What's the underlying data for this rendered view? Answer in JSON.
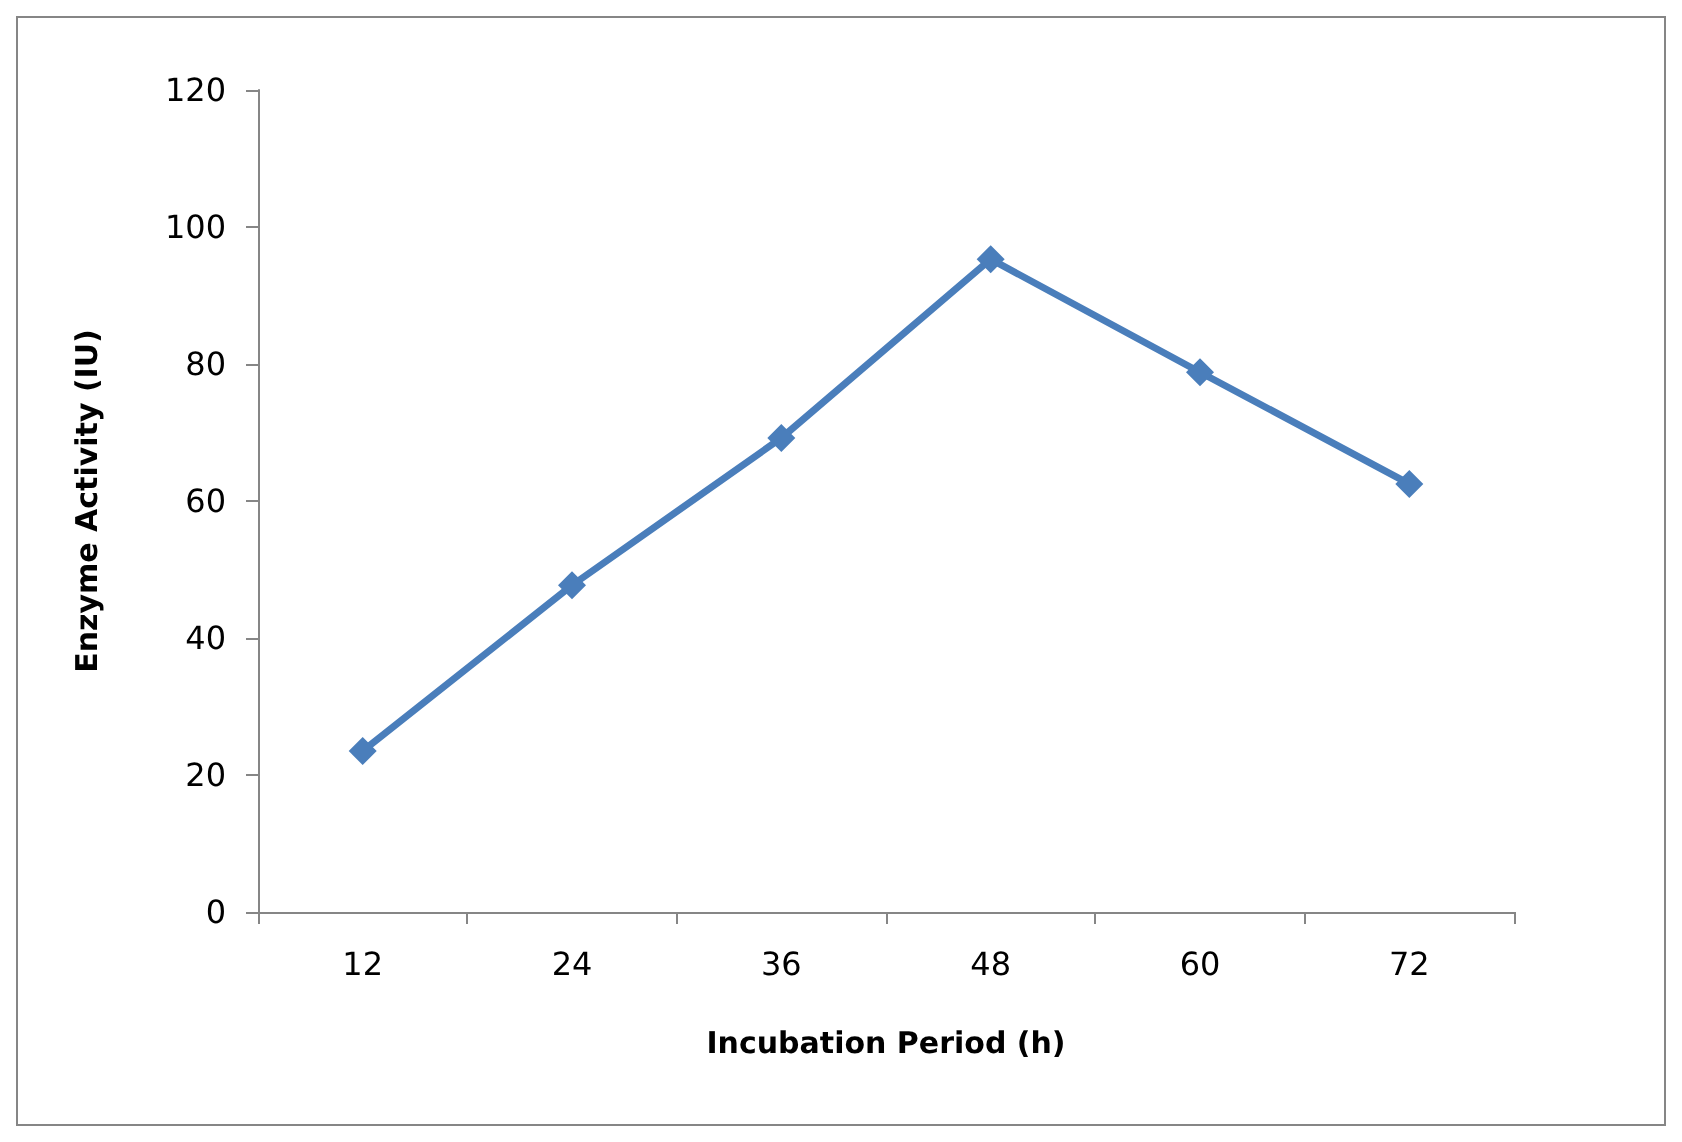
{
  "chart_data": {
    "type": "line",
    "xlabel": "Incubation Period (h)",
    "ylabel": "Enzyme Activity (IU)",
    "categories": [
      "12",
      "24",
      "36",
      "48",
      "60",
      "72"
    ],
    "series": [
      {
        "color": "#4a7ebb",
        "values": [
          23.5,
          47.7,
          69.2,
          95.3,
          78.8,
          62.5
        ]
      }
    ],
    "ylim": [
      0,
      120
    ],
    "yticks": [
      0,
      20,
      40,
      60,
      80,
      100,
      120
    ],
    "grid": false,
    "marker": "diamond",
    "line_style": "solid"
  }
}
